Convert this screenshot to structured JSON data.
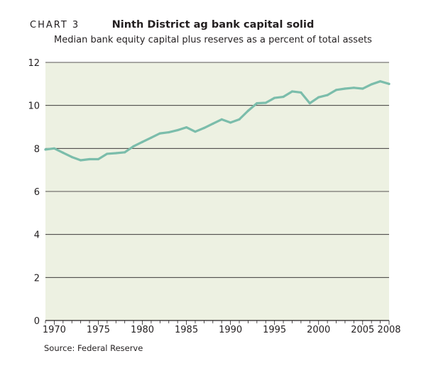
{
  "header": {
    "chart_number": "CHART 3",
    "title": "Ninth District ag bank capital solid",
    "subtitle": "Median bank equity capital plus reserves as a percent of total assets"
  },
  "footer": {
    "source": "Source: Federal Reserve"
  },
  "colors": {
    "plot_background": "#edf1e2",
    "line": "#7bbdab",
    "gridline": "#231f20",
    "text": "#231f20"
  },
  "chart_data": {
    "type": "line",
    "title": "Ninth District ag bank capital solid",
    "subtitle": "Median bank equity capital plus reserves as a percent of total assets",
    "xlabel": "",
    "ylabel": "",
    "xlim": [
      1969,
      2008
    ],
    "ylim": [
      0,
      12
    ],
    "x_ticks": [
      1970,
      1975,
      1980,
      1985,
      1990,
      1995,
      2000,
      2005,
      2008
    ],
    "y_ticks": [
      0,
      2,
      4,
      6,
      8,
      10,
      12
    ],
    "grid": "horizontal",
    "legend": "none",
    "series": [
      {
        "x": [
          1969,
          1970,
          1971,
          1972,
          1973,
          1974,
          1975,
          1976,
          1977,
          1978,
          1979,
          1980,
          1981,
          1982,
          1983,
          1984,
          1985,
          1986,
          1987,
          1988,
          1989,
          1990,
          1991,
          1992,
          1993,
          1994,
          1995,
          1996,
          1997,
          1998,
          1999,
          2000,
          2001,
          2002,
          2003,
          2004,
          2005,
          2006,
          2007,
          2008
        ],
        "values": [
          7.95,
          8.0,
          7.8,
          7.6,
          7.45,
          7.5,
          7.5,
          7.75,
          7.78,
          7.82,
          8.1,
          8.3,
          8.5,
          8.7,
          8.75,
          8.85,
          8.98,
          8.78,
          8.95,
          9.15,
          9.35,
          9.2,
          9.35,
          9.75,
          10.1,
          10.12,
          10.35,
          10.4,
          10.65,
          10.6,
          10.1,
          10.38,
          10.48,
          10.72,
          10.78,
          10.82,
          10.78,
          10.98,
          11.12,
          11.0
        ]
      }
    ]
  }
}
